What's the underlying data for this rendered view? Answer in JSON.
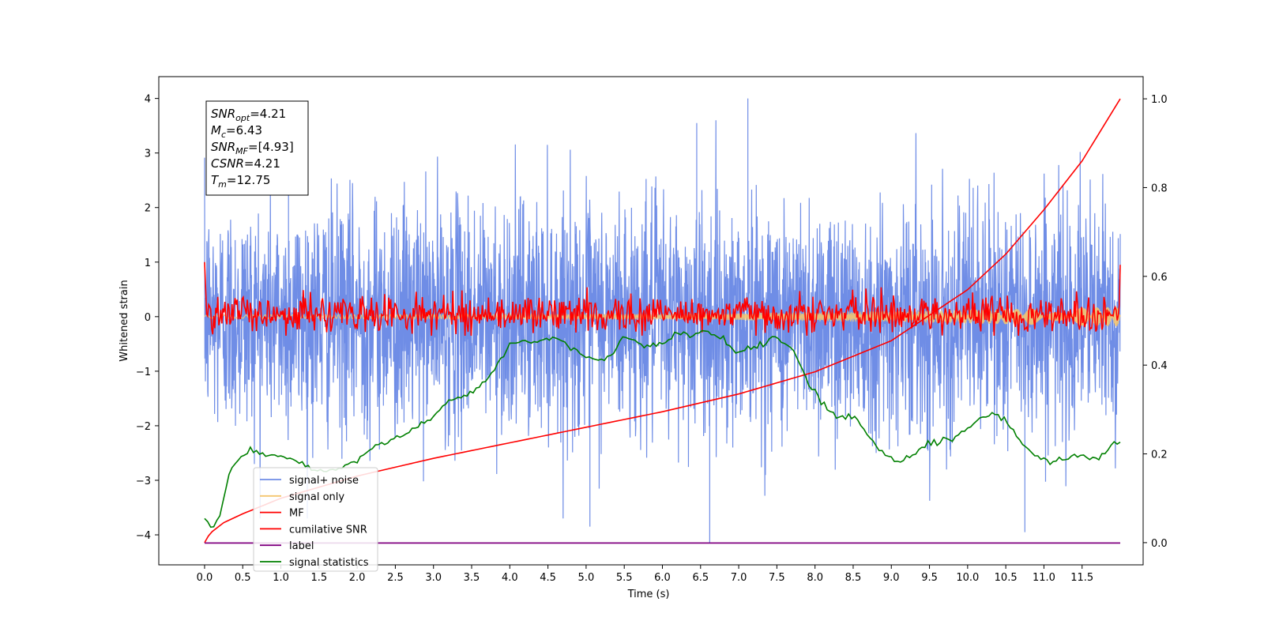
{
  "chart_data": {
    "type": "line",
    "xlabel": "Time (s)",
    "ylabel": "Whitened strain",
    "xlim": [
      -0.6,
      12.3
    ],
    "ylim": [
      -4.55,
      4.4
    ],
    "y2lim": [
      -0.05,
      1.05
    ],
    "x_ticks": [
      "0.0",
      "0.5",
      "1.0",
      "1.5",
      "2.0",
      "2.5",
      "3.0",
      "3.5",
      "4.0",
      "4.5",
      "5.0",
      "5.5",
      "6.0",
      "6.5",
      "7.0",
      "7.5",
      "8.0",
      "8.5",
      "9.0",
      "9.5",
      "10.0",
      "10.5",
      "11.0",
      "11.5"
    ],
    "y_ticks": [
      "4",
      "3",
      "2",
      "1",
      "0",
      "−1",
      "−2",
      "−3",
      "−4"
    ],
    "y2_ticks": [
      "1.0",
      "0.8",
      "0.6",
      "0.4",
      "0.2",
      "0.0"
    ],
    "colors": {
      "signal_noise": "#6f8de6",
      "signal_only": "#f4c56f",
      "mf": "#ff0000",
      "cumulative_snr": "#ff0000",
      "label": "#800080",
      "signal_statistics": "#008000"
    },
    "stats_box": {
      "snr_opt": {
        "base": "SNR",
        "sub": "opt",
        "value": "=4.21"
      },
      "mc": {
        "base": "M",
        "sub": "c",
        "value": "=6.43"
      },
      "snr_mf": {
        "base": "SNR",
        "sub": "MF",
        "value": "=[4.93]"
      },
      "csnr": {
        "base": "CSNR",
        "sub": "",
        "value": "=4.21"
      },
      "tm": {
        "base": "T",
        "sub": "m",
        "value": "=12.75"
      }
    },
    "legend": {
      "position": "lower-left",
      "entries": [
        {
          "name": "signal+ noise",
          "color": "#6f8de6"
        },
        {
          "name": "signal only",
          "color": "#f4c56f"
        },
        {
          "name": "MF",
          "color": "#ff0000"
        },
        {
          "name": "cumilative SNR",
          "color": "#ff0000"
        },
        {
          "name": "label",
          "color": "#800080"
        },
        {
          "name": "signal statistics",
          "color": "#008000"
        }
      ]
    },
    "series": [
      {
        "key": "signal_noise",
        "axis": "left",
        "t_range": [
          0.0,
          12.0
        ],
        "amplitude": "±2.5 (peaks to 4.0 / -4.15)",
        "type": "noise"
      },
      {
        "key": "signal_only",
        "axis": "left",
        "t_range": [
          0.0,
          12.0
        ],
        "envelope": {
          "t": [
            0,
            6,
            9,
            12
          ],
          "a": [
            0.03,
            0.05,
            0.1,
            0.18
          ]
        }
      },
      {
        "key": "mf",
        "axis": "left",
        "t_range": [
          0.0,
          12.0
        ],
        "start": 1.0,
        "end": 0.95,
        "band": [
          -0.35,
          0.55
        ]
      },
      {
        "key": "cumulative_snr",
        "axis": "right",
        "t": [
          0.0,
          0.05,
          0.1,
          0.25,
          0.5,
          1.0,
          2.0,
          3.0,
          4.0,
          5.0,
          6.0,
          7.0,
          8.0,
          9.0,
          10.0,
          10.5,
          11.0,
          11.5,
          12.0
        ],
        "y": [
          0.0,
          0.015,
          0.025,
          0.045,
          0.065,
          0.1,
          0.15,
          0.19,
          0.225,
          0.26,
          0.295,
          0.335,
          0.385,
          0.455,
          0.57,
          0.65,
          0.75,
          0.86,
          1.0
        ]
      },
      {
        "key": "label",
        "axis": "left",
        "t": [
          0.0,
          12.0
        ],
        "y": [
          -4.15,
          -4.15
        ]
      },
      {
        "key": "signal_statistics",
        "axis": "left",
        "t": [
          0.0,
          0.1,
          0.2,
          0.3,
          0.4,
          0.5,
          0.6,
          0.8,
          1.0,
          1.2,
          1.4,
          1.6,
          1.8,
          2.0,
          2.2,
          2.5,
          2.8,
          3.0,
          3.2,
          3.4,
          3.6,
          3.8,
          4.0,
          4.2,
          4.4,
          4.6,
          4.8,
          5.0,
          5.3,
          5.5,
          5.8,
          6.0,
          6.2,
          6.4,
          6.6,
          6.8,
          7.0,
          7.2,
          7.5,
          7.7,
          7.9,
          8.1,
          8.3,
          8.5,
          8.7,
          8.9,
          9.1,
          9.3,
          9.5,
          9.8,
          10.0,
          10.3,
          10.5,
          10.7,
          10.9,
          11.1,
          11.3,
          11.5,
          11.7,
          11.9,
          12.0
        ],
        "y": [
          -3.7,
          -3.9,
          -3.65,
          -3.0,
          -2.65,
          -2.55,
          -2.45,
          -2.55,
          -2.55,
          -2.65,
          -2.8,
          -2.85,
          -2.8,
          -2.6,
          -2.4,
          -2.2,
          -2.05,
          -1.85,
          -1.55,
          -1.45,
          -1.3,
          -1.0,
          -0.5,
          -0.45,
          -0.45,
          -0.4,
          -0.55,
          -0.75,
          -0.8,
          -0.35,
          -0.55,
          -0.5,
          -0.3,
          -0.35,
          -0.25,
          -0.4,
          -0.65,
          -0.55,
          -0.35,
          -0.6,
          -1.2,
          -1.6,
          -1.85,
          -1.8,
          -2.2,
          -2.5,
          -2.65,
          -2.5,
          -2.3,
          -2.25,
          -2.05,
          -1.75,
          -1.9,
          -2.3,
          -2.55,
          -2.65,
          -2.6,
          -2.55,
          -2.6,
          -2.35,
          -2.3
        ]
      }
    ]
  }
}
